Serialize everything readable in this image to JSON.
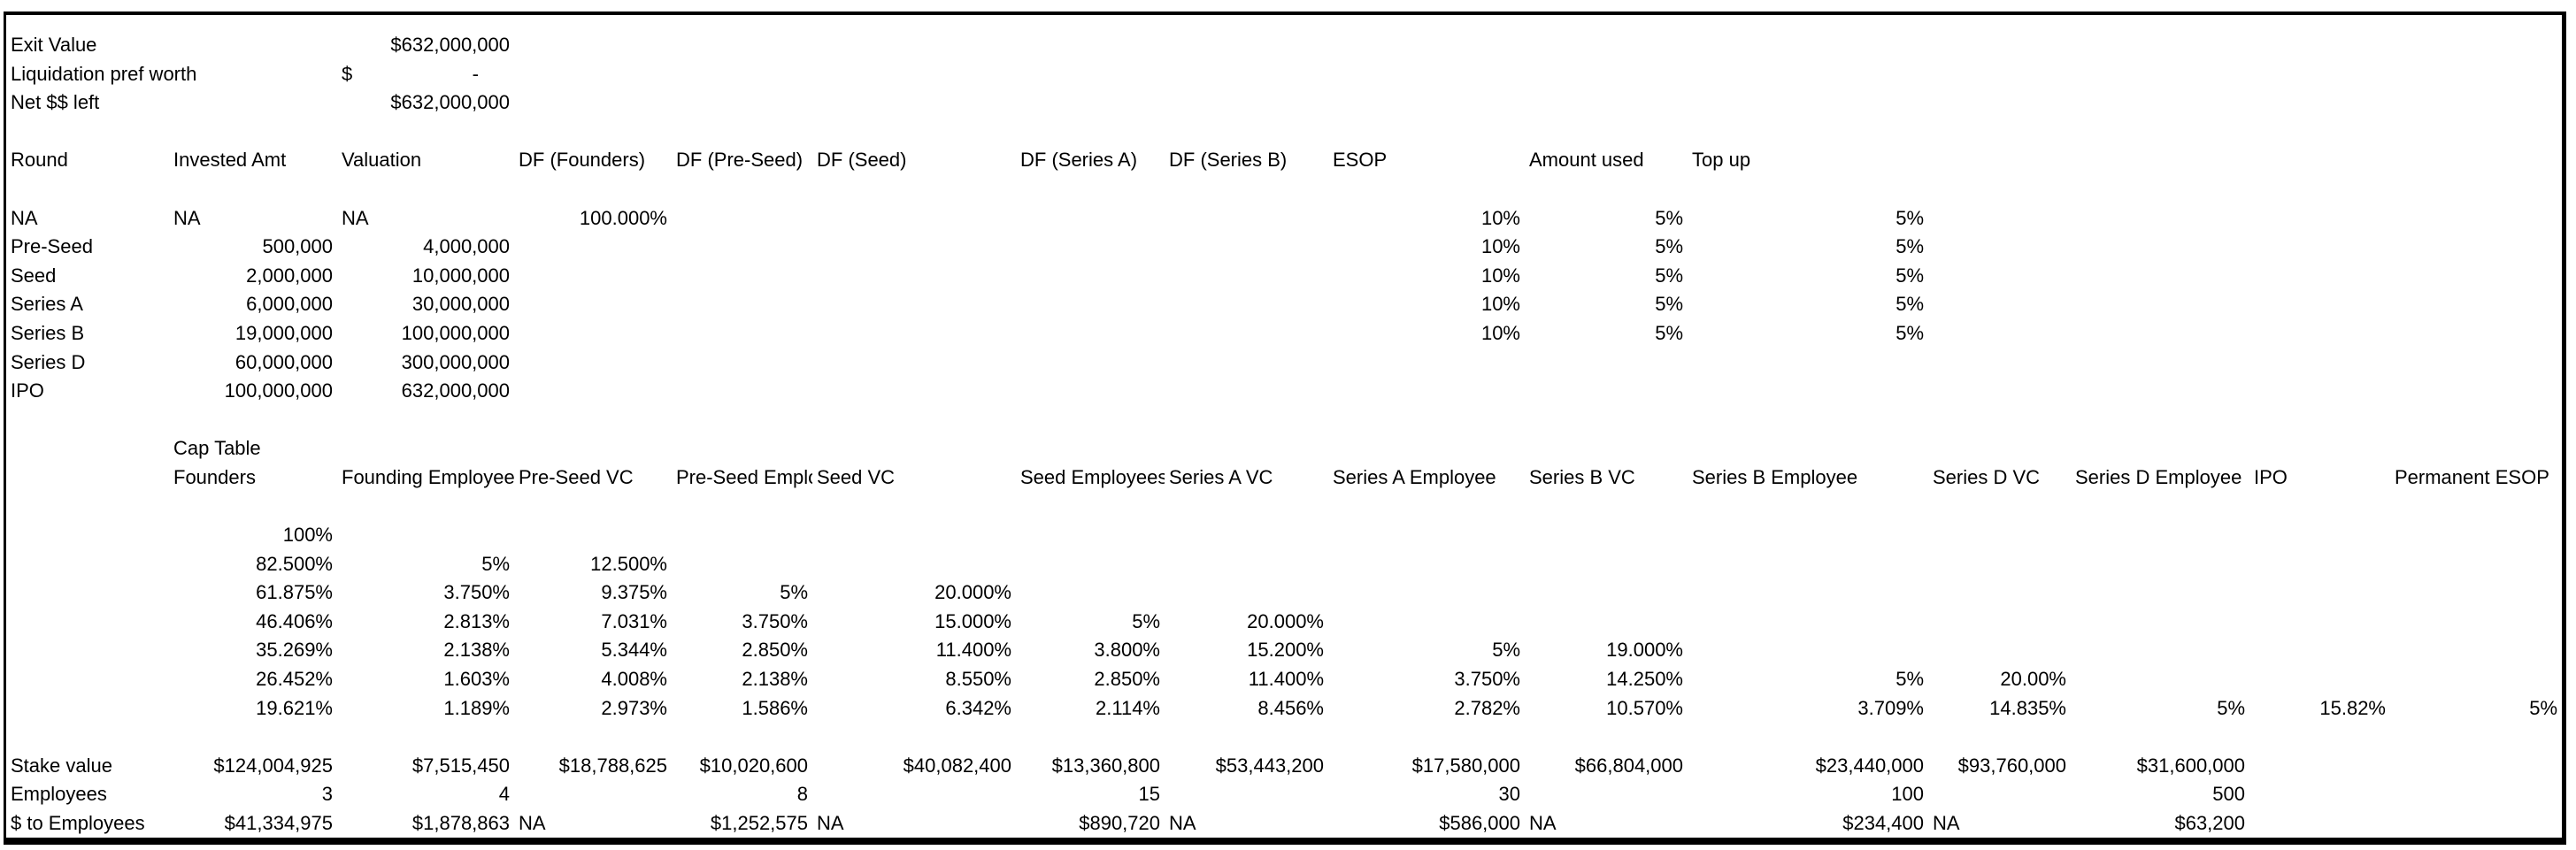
{
  "colors": {
    "background": "#ffffff",
    "border": "#000000",
    "text": "#000000"
  },
  "summary": {
    "exit_value_label": "Exit Value",
    "exit_value": "$632,000,000",
    "liq_pref_label": "Liquidation pref worth",
    "liq_pref_currency": "$",
    "liq_pref_value": "-",
    "net_label": "Net $$ left",
    "net_value": "$632,000,000"
  },
  "rounds_table": {
    "headers": [
      "Round",
      "Invested Amt",
      "Valuation",
      "DF (Founders)",
      "DF (Pre-Seed)",
      "DF (Seed)",
      "DF (Series A)",
      "DF (Series B)",
      "ESOP",
      "Amount used",
      "Top up"
    ],
    "rows": [
      {
        "round": "NA",
        "invested": "NA",
        "valuation": "NA",
        "df_founders": "100.000%",
        "esop": "10%",
        "amount_used": "5%",
        "top_up": "5%"
      },
      {
        "round": "Pre-Seed",
        "invested": "500,000",
        "valuation": "4,000,000",
        "esop": "10%",
        "amount_used": "5%",
        "top_up": "5%"
      },
      {
        "round": "Seed",
        "invested": "2,000,000",
        "valuation": "10,000,000",
        "esop": "10%",
        "amount_used": "5%",
        "top_up": "5%"
      },
      {
        "round": "Series A",
        "invested": "6,000,000",
        "valuation": "30,000,000",
        "esop": "10%",
        "amount_used": "5%",
        "top_up": "5%"
      },
      {
        "round": "Series B",
        "invested": "19,000,000",
        "valuation": "100,000,000",
        "esop": "10%",
        "amount_used": "5%",
        "top_up": "5%"
      },
      {
        "round": "Series D",
        "invested": "60,000,000",
        "valuation": "300,000,000"
      },
      {
        "round": "IPO",
        "invested": "100,000,000",
        "valuation": "632,000,000"
      }
    ]
  },
  "cap_table": {
    "title": "Cap Table",
    "headers": [
      "Founders",
      "Founding Employee",
      "Pre-Seed VC",
      "Pre-Seed Employ",
      "Seed VC",
      "Seed Employees",
      "Series A VC",
      "Series A Employee",
      "Series B VC",
      "Series B Employee",
      "Series D VC",
      "Series D Employee",
      "IPO",
      "Permanent ESOP"
    ],
    "rows": [
      [
        "100%",
        "",
        "",
        "",
        "",
        "",
        "",
        "",
        "",
        "",
        "",
        "",
        "",
        ""
      ],
      [
        "82.500%",
        "5%",
        "12.500%",
        "",
        "",
        "",
        "",
        "",
        "",
        "",
        "",
        "",
        "",
        ""
      ],
      [
        "61.875%",
        "3.750%",
        "9.375%",
        "5%",
        "20.000%",
        "",
        "",
        "",
        "",
        "",
        "",
        "",
        "",
        ""
      ],
      [
        "46.406%",
        "2.813%",
        "7.031%",
        "3.750%",
        "15.000%",
        "5%",
        "20.000%",
        "",
        "",
        "",
        "",
        "",
        "",
        ""
      ],
      [
        "35.269%",
        "2.138%",
        "5.344%",
        "2.850%",
        "11.400%",
        "3.800%",
        "15.200%",
        "5%",
        "19.000%",
        "",
        "",
        "",
        "",
        ""
      ],
      [
        "26.452%",
        "1.603%",
        "4.008%",
        "2.138%",
        "8.550%",
        "2.850%",
        "11.400%",
        "3.750%",
        "14.250%",
        "5%",
        "20.00%",
        "",
        "",
        ""
      ],
      [
        "19.621%",
        "1.189%",
        "2.973%",
        "1.586%",
        "6.342%",
        "2.114%",
        "8.456%",
        "2.782%",
        "10.570%",
        "3.709%",
        "14.835%",
        "5%",
        "15.82%",
        "5%"
      ]
    ]
  },
  "results": {
    "stake_label": "Stake value",
    "stake": [
      "$124,004,925",
      "$7,515,450",
      "$18,788,625",
      "$10,020,600",
      "$40,082,400",
      "$13,360,800",
      "$53,443,200",
      "$17,580,000",
      "$66,804,000",
      "$23,440,000",
      "$93,760,000",
      "$31,600,000",
      "",
      ""
    ],
    "employees_label": "Employees",
    "employees": [
      "3",
      "4",
      "",
      "8",
      "",
      "15",
      "",
      "30",
      "",
      "100",
      "",
      "500",
      "",
      ""
    ],
    "dollars_label": "$ to Employees",
    "dollars": [
      "$41,334,975",
      "$1,878,863",
      "NA",
      "$1,252,575",
      "NA",
      "$890,720",
      "NA",
      "$586,000",
      "NA",
      "$234,400",
      "NA",
      "$63,200",
      "",
      ""
    ]
  }
}
